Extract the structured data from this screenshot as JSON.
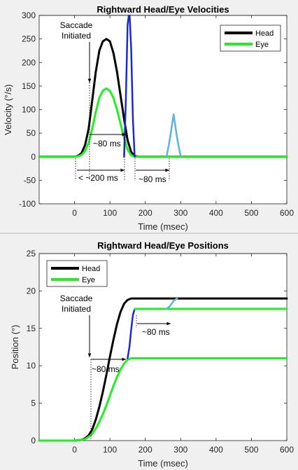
{
  "colors": {
    "head": "#000000",
    "eye": "#22ee22",
    "saccade": "#1b2bc8",
    "corrective": "#5ab4dc",
    "axis": "#262626",
    "plot_bg": "#ffffff",
    "annotation": "#000000"
  },
  "chart_data": [
    {
      "type": "line",
      "title": "Rightward  Head/Eye Velocities",
      "xlabel": "Time (msec)",
      "ylabel": "Velocity (°/s)",
      "xlim": [
        -100,
        600
      ],
      "ylim": [
        -100,
        300
      ],
      "xticks": [
        0,
        100,
        200,
        300,
        400,
        500,
        600
      ],
      "yticks": [
        -100,
        -50,
        0,
        50,
        100,
        150,
        200,
        250,
        300
      ],
      "legend": {
        "placement": "top-right",
        "entries": [
          "Head",
          "Eye"
        ]
      },
      "grid": false,
      "series": [
        {
          "name": "Head",
          "color_key": "head",
          "x": [
            -100,
            0,
            10,
            20,
            30,
            40,
            50,
            60,
            70,
            80,
            90,
            100,
            110,
            120,
            130,
            140,
            150,
            160,
            170,
            180,
            600
          ],
          "y": [
            0,
            0,
            2,
            8,
            25,
            60,
            120,
            180,
            225,
            245,
            250,
            245,
            220,
            180,
            130,
            80,
            35,
            10,
            2,
            0,
            0
          ]
        },
        {
          "name": "Eye",
          "color_key": "eye",
          "x": [
            -100,
            0,
            10,
            20,
            30,
            40,
            50,
            60,
            70,
            80,
            90,
            100,
            110,
            120,
            130,
            140,
            150,
            160,
            170,
            600
          ],
          "y": [
            0,
            0,
            1,
            4,
            12,
            30,
            60,
            95,
            125,
            140,
            145,
            140,
            125,
            100,
            70,
            40,
            15,
            3,
            0,
            0
          ]
        },
        {
          "name": "",
          "color_key": "saccade",
          "x": [
            140,
            145,
            150,
            155,
            160,
            165,
            170
          ],
          "y": [
            0,
            120,
            280,
            310,
            230,
            80,
            0
          ]
        },
        {
          "name": "",
          "color_key": "corrective",
          "x": [
            260,
            270,
            280,
            290,
            300
          ],
          "y": [
            0,
            40,
            90,
            40,
            0
          ]
        }
      ],
      "annotations": [
        {
          "text": "Saccade\nInitiated"
        },
        {
          "text": "~80 ms"
        },
        {
          "text": "< ~200 ms"
        },
        {
          "text": "~80 ms"
        }
      ]
    },
    {
      "type": "line",
      "title": "Rightward  Head/Eye Positions",
      "xlabel": "Time (msec)",
      "ylabel": "Position (°)",
      "xlim": [
        -100,
        600
      ],
      "ylim": [
        0,
        25
      ],
      "xticks": [
        0,
        100,
        200,
        300,
        400,
        500,
        600
      ],
      "yticks": [
        0,
        5,
        10,
        15,
        20,
        25
      ],
      "legend": {
        "placement": "top-left",
        "entries": [
          "Head",
          "Eye"
        ]
      },
      "grid": false,
      "series": [
        {
          "name": "Head",
          "color_key": "head",
          "x": [
            -100,
            0,
            20,
            30,
            40,
            50,
            60,
            70,
            80,
            90,
            100,
            110,
            120,
            130,
            140,
            150,
            160,
            170,
            180,
            600
          ],
          "y": [
            0,
            0,
            0.1,
            0.3,
            0.7,
            1.5,
            2.8,
            4.5,
            6.5,
            8.8,
            11.2,
            13.5,
            15.6,
            17.2,
            18.3,
            18.8,
            19.0,
            19.0,
            19.0,
            19.0
          ]
        },
        {
          "name": "Eye",
          "color_key": "eye",
          "x": [
            -100,
            0,
            20,
            30,
            40,
            50,
            60,
            70,
            80,
            90,
            100,
            110,
            120,
            130,
            140,
            150,
            160,
            170,
            600
          ],
          "y": [
            0,
            0,
            0.1,
            0.2,
            0.5,
            0.9,
            1.6,
            2.5,
            3.5,
            4.7,
            6.0,
            7.3,
            8.5,
            9.5,
            10.3,
            10.8,
            11.0,
            11.0,
            11.0
          ]
        },
        {
          "name": "",
          "color_key": "saccade",
          "x": [
            150,
            155,
            160,
            165,
            170
          ],
          "y": [
            11.0,
            12.5,
            14.8,
            16.8,
            17.6
          ]
        },
        {
          "name": "",
          "color_key": "eye_plateau",
          "x": [
            170,
            200,
            260,
            270,
            600
          ],
          "y": [
            17.6,
            17.6,
            17.6,
            17.6,
            17.6
          ]
        },
        {
          "name": "",
          "color_key": "corrective",
          "x": [
            260,
            270,
            280,
            290
          ],
          "y": [
            17.6,
            18.0,
            18.7,
            19.0
          ]
        }
      ],
      "annotations": [
        {
          "text": "Saccade\nInitiated"
        },
        {
          "text": "~80 ms"
        },
        {
          "text": "~80 ms"
        }
      ]
    }
  ]
}
